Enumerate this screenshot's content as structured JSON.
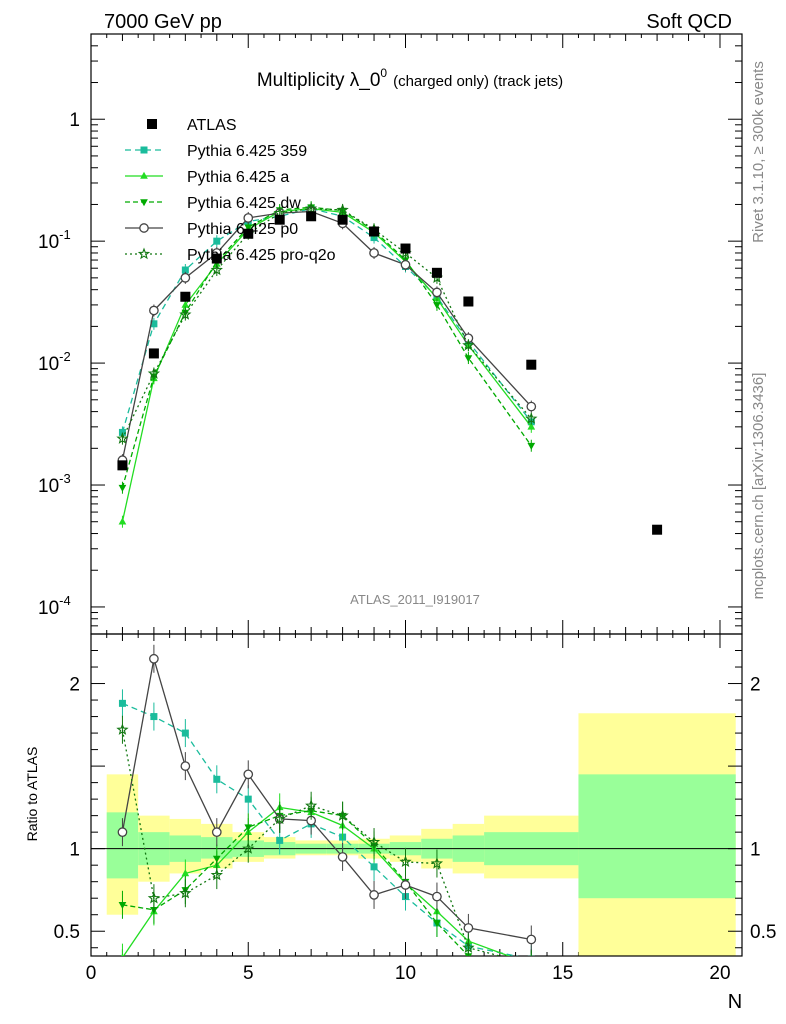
{
  "header": {
    "left": "7000 GeV pp",
    "right": "Soft QCD"
  },
  "side": {
    "top": "Rivet 3.1.10, ≥ 300k events",
    "bottom": "mcplots.cern.ch [arXiv:1306.3436]"
  },
  "analysis_id": "ATLAS_2011_I919017",
  "chart_data": {
    "type": "scatter",
    "title": "Multiplicity λ_0",
    "title_sup": "0",
    "title_suffix": "(charged only) (track jets)",
    "xlabel": "N",
    "ylabel_main": "",
    "ylabel_ratio": "Ratio to ATLAS",
    "xlim": [
      0,
      20.7
    ],
    "ylim_main": [
      6e-05,
      5
    ],
    "yscale_main": "log",
    "ylim_ratio": [
      0.35,
      2.3
    ],
    "legend_position": "top-left",
    "x_ticks": [
      "0",
      "5",
      "10",
      "15",
      "20"
    ],
    "y_ticks_main": [
      "1",
      "10^-1",
      "10^-2",
      "10^-3",
      "10^-4"
    ],
    "y_ticks_ratio": [
      "0.5",
      "1",
      "2"
    ],
    "data": {
      "name": "ATLAS",
      "color": "#000000",
      "x": [
        1,
        2,
        3,
        4,
        5,
        6,
        7,
        8,
        9,
        10,
        11,
        12,
        14,
        18
      ],
      "y": [
        0.00145,
        0.012,
        0.035,
        0.072,
        0.115,
        0.15,
        0.16,
        0.15,
        0.12,
        0.087,
        0.055,
        0.032,
        0.0097,
        0.00043
      ]
    },
    "ratio_bands": {
      "x_edges": [
        0.5,
        1.5,
        2.5,
        3.5,
        4.5,
        5.5,
        6.5,
        7.5,
        8.5,
        9.5,
        10.5,
        11.5,
        12.5,
        15.5,
        20.5
      ],
      "yellow_lo": [
        0.6,
        0.8,
        0.85,
        0.88,
        0.92,
        0.94,
        0.96,
        0.96,
        0.94,
        0.92,
        0.88,
        0.85,
        0.82,
        0.35
      ],
      "yellow_hi": [
        1.45,
        1.2,
        1.18,
        1.15,
        1.1,
        1.07,
        1.05,
        1.05,
        1.06,
        1.08,
        1.12,
        1.15,
        1.2,
        1.82
      ],
      "green_lo": [
        0.82,
        0.9,
        0.92,
        0.94,
        0.95,
        0.96,
        0.97,
        0.97,
        0.97,
        0.96,
        0.94,
        0.92,
        0.9,
        0.7
      ],
      "green_hi": [
        1.22,
        1.1,
        1.08,
        1.07,
        1.05,
        1.04,
        1.03,
        1.03,
        1.03,
        1.04,
        1.06,
        1.08,
        1.1,
        1.45
      ]
    },
    "series": [
      {
        "name": "Pythia 6.425 359",
        "color": "#1abc9c",
        "dash": "6,4",
        "marker": "square",
        "x": [
          1,
          2,
          3,
          4,
          5,
          6,
          7,
          8,
          9,
          10,
          11,
          12,
          14
        ],
        "y": [
          0.0027,
          0.021,
          0.058,
          0.1,
          0.145,
          0.16,
          0.185,
          0.16,
          0.107,
          0.062,
          0.035,
          0.015,
          0.0033
        ],
        "ratio": [
          1.88,
          1.8,
          1.7,
          1.42,
          1.3,
          1.05,
          1.15,
          1.07,
          0.89,
          0.71,
          0.55,
          0.41,
          0.33
        ]
      },
      {
        "name": "Pythia 6.425 a",
        "color": "#22dd22",
        "dash": "",
        "marker": "triangle-up",
        "x": [
          1,
          2,
          3,
          4,
          5,
          6,
          7,
          8,
          9,
          10,
          11,
          12,
          14
        ],
        "y": [
          0.0005,
          0.0075,
          0.03,
          0.065,
          0.125,
          0.175,
          0.185,
          0.172,
          0.118,
          0.068,
          0.034,
          0.014,
          0.003
        ],
        "ratio": [
          0.34,
          0.62,
          0.85,
          0.9,
          1.1,
          1.25,
          1.22,
          1.14,
          1.0,
          0.79,
          0.62,
          0.44,
          0.3
        ]
      },
      {
        "name": "Pythia 6.425 dw",
        "color": "#00aa00",
        "dash": "5,3",
        "marker": "triangle-down",
        "x": [
          1,
          2,
          3,
          4,
          5,
          6,
          7,
          8,
          9,
          10,
          11,
          12,
          14
        ],
        "y": [
          0.00095,
          0.0078,
          0.026,
          0.068,
          0.13,
          0.18,
          0.19,
          0.178,
          0.122,
          0.07,
          0.03,
          0.011,
          0.0021
        ],
        "ratio": [
          0.66,
          0.63,
          0.75,
          0.94,
          1.13,
          1.2,
          1.23,
          1.2,
          1.02,
          0.8,
          0.55,
          0.35,
          0.22
        ]
      },
      {
        "name": "Pythia 6.425 p0",
        "color": "#444444",
        "dash": "",
        "marker": "circle-open",
        "x": [
          1,
          2,
          3,
          4,
          5,
          6,
          7,
          8,
          9,
          10,
          11,
          12,
          14
        ],
        "y": [
          0.0016,
          0.027,
          0.05,
          0.08,
          0.155,
          0.17,
          0.175,
          0.14,
          0.08,
          0.064,
          0.038,
          0.016,
          0.0044
        ],
        "ratio": [
          1.1,
          2.15,
          1.5,
          1.1,
          1.45,
          1.18,
          1.17,
          0.95,
          0.72,
          0.78,
          0.71,
          0.52,
          0.45
        ]
      },
      {
        "name": "Pythia 6.425 pro-q2o",
        "color": "#117711",
        "dash": "2,3",
        "marker": "star",
        "x": [
          1,
          2,
          3,
          4,
          5,
          6,
          7,
          8,
          9,
          10,
          11,
          12,
          14
        ],
        "y": [
          0.0024,
          0.0082,
          0.025,
          0.058,
          0.115,
          0.17,
          0.185,
          0.18,
          0.125,
          0.08,
          0.05,
          0.014,
          0.0035
        ],
        "ratio": [
          1.72,
          0.7,
          0.73,
          0.84,
          1.0,
          1.18,
          1.26,
          1.2,
          1.04,
          0.92,
          0.91,
          0.4,
          0.3
        ]
      }
    ]
  }
}
